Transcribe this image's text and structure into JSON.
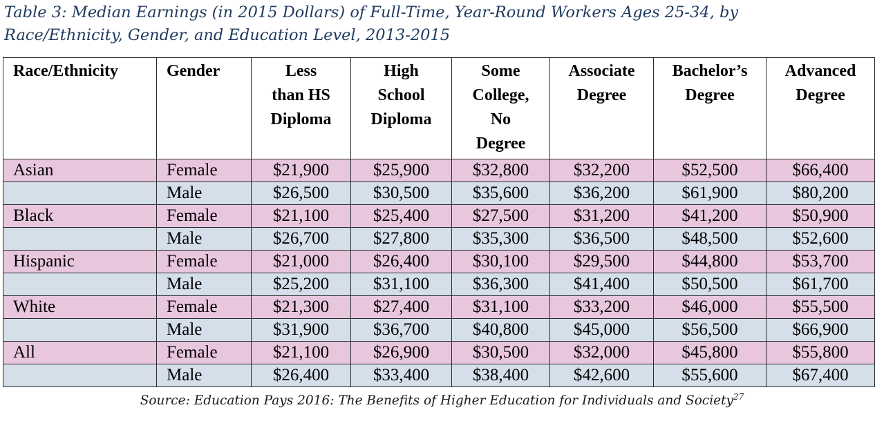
{
  "caption": {
    "line1": "Table 3: Median Earnings (in 2015 Dollars) of Full-Time, Year-Round Workers Ages 25-34, by",
    "line2": "Race/Ethnicity, Gender, and Education Level, 2013-2015"
  },
  "table": {
    "headers": [
      [
        "Race/Ethnicity"
      ],
      [
        "Gender"
      ],
      [
        "Less",
        "than HS",
        "Diploma"
      ],
      [
        "High",
        "School",
        "Diploma"
      ],
      [
        "Some",
        "College,",
        "No",
        "Degree"
      ],
      [
        "Associate",
        "Degree"
      ],
      [
        "Bachelor’s",
        "Degree"
      ],
      [
        "Advanced",
        "Degree"
      ]
    ],
    "rows": [
      {
        "race": "Asian",
        "gender": "Female",
        "values": [
          "$21,900",
          "$25,900",
          "$32,800",
          "$32,200",
          "$52,500",
          "$66,400"
        ]
      },
      {
        "race": "",
        "gender": "Male",
        "values": [
          "$26,500",
          "$30,500",
          "$35,600",
          "$36,200",
          "$61,900",
          "$80,200"
        ]
      },
      {
        "race": "Black",
        "gender": "Female",
        "values": [
          "$21,100",
          "$25,400",
          "$27,500",
          "$31,200",
          "$41,200",
          "$50,900"
        ]
      },
      {
        "race": "",
        "gender": "Male",
        "values": [
          "$26,700",
          "$27,800",
          "$35,300",
          "$36,500",
          "$48,500",
          "$52,600"
        ]
      },
      {
        "race": "Hispanic",
        "gender": "Female",
        "values": [
          "$21,000",
          "$26,400",
          "$30,100",
          "$29,500",
          "$44,800",
          "$53,700"
        ]
      },
      {
        "race": "",
        "gender": "Male",
        "values": [
          "$25,200",
          "$31,100",
          "$36,300",
          "$41,400",
          "$50,500",
          "$61,700"
        ]
      },
      {
        "race": "White",
        "gender": "Female",
        "values": [
          "$21,300",
          "$27,400",
          "$31,100",
          "$33,200",
          "$46,000",
          "$55,500"
        ]
      },
      {
        "race": "",
        "gender": "Male",
        "values": [
          "$31,900",
          "$36,700",
          "$40,800",
          "$45,000",
          "$56,500",
          "$66,900"
        ]
      },
      {
        "race": "All",
        "gender": "Female",
        "values": [
          "$21,100",
          "$26,900",
          "$30,500",
          "$32,000",
          "$45,800",
          "$55,800"
        ]
      },
      {
        "race": "",
        "gender": "Male",
        "values": [
          "$26,400",
          "$33,400",
          "$38,400",
          "$42,600",
          "$55,600",
          "$67,400"
        ]
      }
    ]
  },
  "source": {
    "text": "Source: Education Pays 2016: The Benefits of Higher Education for Individuals and Society",
    "footnote": "27"
  },
  "colors": {
    "female_row": "#e8c6de",
    "male_row": "#d4dfea",
    "caption_text": "#1f3a5f"
  }
}
